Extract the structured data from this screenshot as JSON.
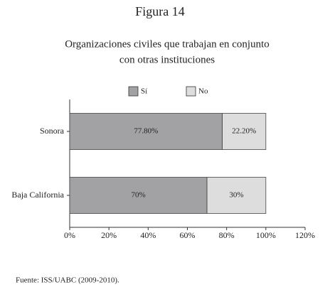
{
  "chart_data": {
    "type": "stacked_bar_horizontal",
    "title": "Figura 14",
    "subtitle": [
      "Organizaciones civiles que trabajan en conjunto",
      "con otras instituciones"
    ],
    "categories": [
      "Sonora",
      "Baja California"
    ],
    "series": [
      {
        "name": "Sí",
        "color": "#a2a2a4",
        "values": [
          77.8,
          70
        ],
        "value_labels": [
          "77.80%",
          "70%"
        ]
      },
      {
        "name": "No",
        "color": "#dddddd",
        "values": [
          22.2,
          30
        ],
        "value_labels": [
          "22.20%",
          "30%"
        ]
      }
    ],
    "xlim": [
      0,
      120
    ],
    "xticks": [
      {
        "value": 0,
        "label": "0%"
      },
      {
        "value": 20,
        "label": "20%"
      },
      {
        "value": 40,
        "label": "40%"
      },
      {
        "value": 60,
        "label": "60%"
      },
      {
        "value": 80,
        "label": "80%"
      },
      {
        "value": 100,
        "label": "100%"
      },
      {
        "value": 120,
        "label": "120%"
      }
    ],
    "note": "Fuente: ISS/UABC (2009-2010)."
  }
}
